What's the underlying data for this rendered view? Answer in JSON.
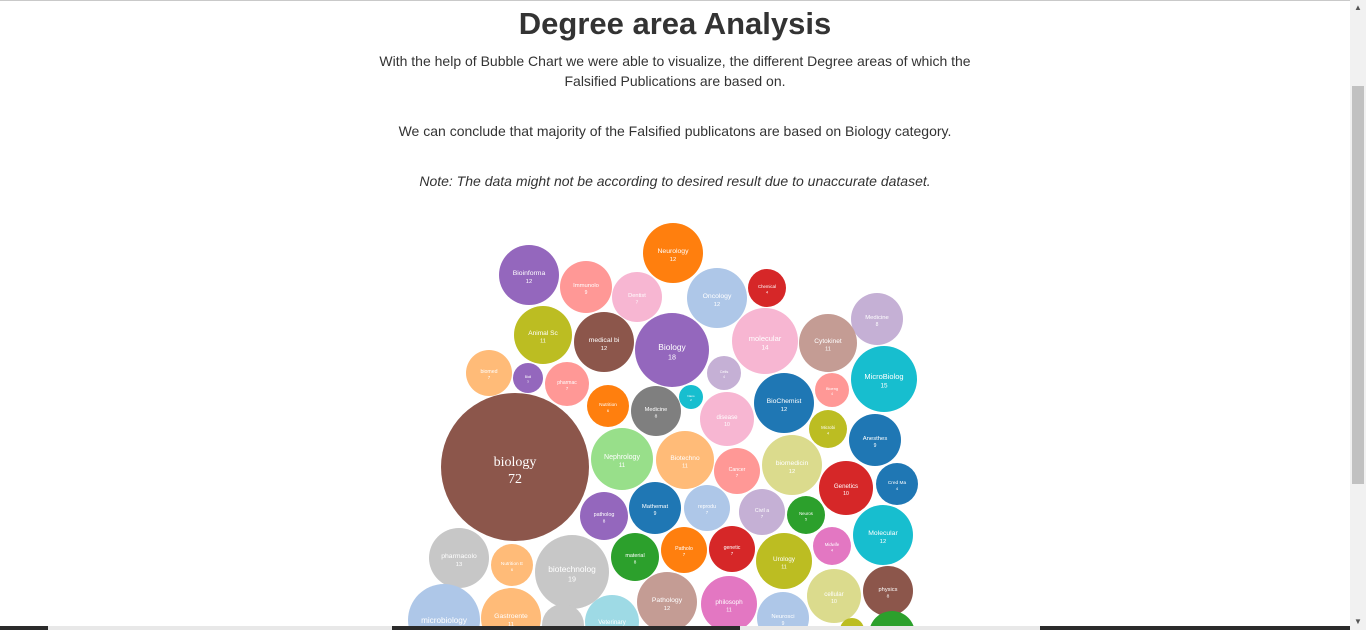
{
  "page": {
    "title": "Degree area Analysis",
    "paragraph1": "With the help of Bubble Chart we were able to visualize, the different Degree areas of which the Falsified Publications are based on.",
    "paragraph2": "We can conclude that majority of the Falsified publicatons are based on Biology category.",
    "note": "Note: The data might not be according to desired result due to unaccurate dataset."
  },
  "scrollbar": {
    "up_icon": "triangle-up-icon",
    "down_icon": "triangle-down-icon"
  },
  "chart_data": {
    "type": "bubble",
    "bubbles": [
      {
        "label": "Neurology",
        "value": "12",
        "color": "#ff7f0e"
      },
      {
        "label": "Bioinforma",
        "value": "12",
        "color": "#9467bd"
      },
      {
        "label": "Immunolo",
        "value": "9",
        "color": "#ff9896"
      },
      {
        "label": "Dentist",
        "value": "7",
        "color": "#f7b6d2"
      },
      {
        "label": "Oncology",
        "value": "12",
        "color": "#aec7e8"
      },
      {
        "label": "Chemical",
        "value": "4",
        "color": "#d62728"
      },
      {
        "label": "Medicine",
        "value": "8",
        "color": "#c5b0d5"
      },
      {
        "label": "Animal Sc",
        "value": "11",
        "color": "#bcbd22"
      },
      {
        "label": "medical bi",
        "value": "12",
        "color": "#8c564b"
      },
      {
        "label": "Biology",
        "value": "18",
        "color": "#9467bd"
      },
      {
        "label": "molecular",
        "value": "14",
        "color": "#f7b6d2"
      },
      {
        "label": "Cytokinet",
        "value": "11",
        "color": "#c49c94"
      },
      {
        "label": "MicroBiolog",
        "value": "15",
        "color": "#17becf"
      },
      {
        "label": "biomed",
        "value": "7",
        "color": "#ffbb78"
      },
      {
        "label": "Bioli",
        "value": "3",
        "color": "#9467bd"
      },
      {
        "label": "pharmac",
        "value": "7",
        "color": "#ff9896"
      },
      {
        "label": "Cells",
        "value": "4",
        "color": "#c5b0d5"
      },
      {
        "label": "Nutrition",
        "value": "6",
        "color": "#ff7f0e"
      },
      {
        "label": "Nano",
        "value": "2",
        "color": "#17becf"
      },
      {
        "label": "Medicine",
        "value": "8",
        "color": "#7f7f7f"
      },
      {
        "label": "disease",
        "value": "10",
        "color": "#f7b6d2"
      },
      {
        "label": "BioChemist",
        "value": "12",
        "color": "#1f77b4"
      },
      {
        "label": "Bioeng",
        "value": "4",
        "color": "#ff9896"
      },
      {
        "label": "Microbi",
        "value": "4",
        "color": "#bcbd22"
      },
      {
        "label": "biology",
        "value": "72",
        "color": "#8c564b"
      },
      {
        "label": "Nephrology",
        "value": "11",
        "color": "#98df8a"
      },
      {
        "label": "Biotechno",
        "value": "11",
        "color": "#ffbb78"
      },
      {
        "label": "Cancer",
        "value": "7",
        "color": "#ff9896"
      },
      {
        "label": "biomedicin",
        "value": "12",
        "color": "#dbdb8d"
      },
      {
        "label": "Anesthes",
        "value": "9",
        "color": "#1f77b4"
      },
      {
        "label": "Genetics",
        "value": "10",
        "color": "#d62728"
      },
      {
        "label": "Cred Ma",
        "value": "4",
        "color": "#1f77b4"
      },
      {
        "label": "patholog",
        "value": "8",
        "color": "#9467bd"
      },
      {
        "label": "Mathemat",
        "value": "9",
        "color": "#1f77b4"
      },
      {
        "label": "reprodu",
        "value": "7",
        "color": "#aec7e8"
      },
      {
        "label": "Civil a",
        "value": "7",
        "color": "#c5b0d5"
      },
      {
        "label": "Neuros",
        "value": "5",
        "color": "#2ca02c"
      },
      {
        "label": "Molecular",
        "value": "12",
        "color": "#17becf"
      },
      {
        "label": "Midwife",
        "value": "4",
        "color": "#e377c2"
      },
      {
        "label": "pharmacolo",
        "value": "13",
        "color": "#c7c7c7"
      },
      {
        "label": "Nutrition E",
        "value": "6",
        "color": "#ffbb78"
      },
      {
        "label": "biotechnolog",
        "value": "19",
        "color": "#c7c7c7"
      },
      {
        "label": "material",
        "value": "8",
        "color": "#2ca02c"
      },
      {
        "label": "Patholo",
        "value": "7",
        "color": "#ff7f0e"
      },
      {
        "label": "genetic",
        "value": "7",
        "color": "#d62728"
      },
      {
        "label": "Urology",
        "value": "11",
        "color": "#bcbd22"
      },
      {
        "label": "physics",
        "value": "8",
        "color": "#8c564b"
      },
      {
        "label": "cellular",
        "value": "10",
        "color": "#dbdb8d"
      },
      {
        "label": "philosoph",
        "value": "11",
        "color": "#e377c2"
      },
      {
        "label": "Pathology",
        "value": "12",
        "color": "#c49c94"
      },
      {
        "label": "Neurosci",
        "value": "9",
        "color": "#aec7e8"
      },
      {
        "label": "microbiology",
        "value": "",
        "color": "#aec7e8"
      },
      {
        "label": "Gastroente",
        "value": "11",
        "color": "#ffbb78"
      },
      {
        "label": "Veterinary",
        "value": "",
        "color": "#9edae5"
      },
      {
        "label": "",
        "value": "",
        "color": "#c7c7c7"
      },
      {
        "label": "",
        "value": "",
        "color": "#bcbd22"
      },
      {
        "label": "",
        "value": "",
        "color": "#2ca02c"
      }
    ]
  }
}
